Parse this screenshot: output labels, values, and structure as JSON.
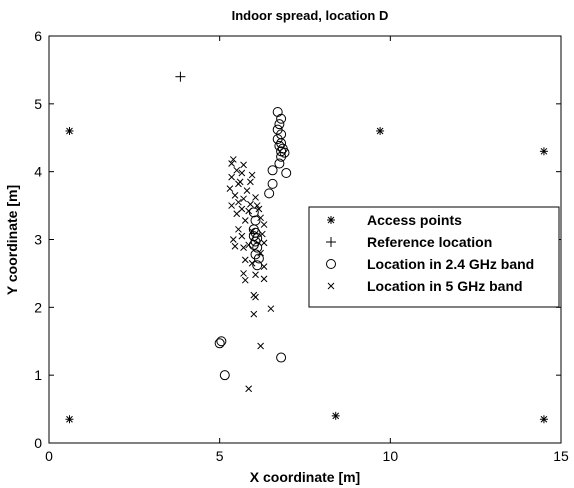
{
  "chart_data": {
    "type": "scatter",
    "title": "Indoor spread, location D",
    "xlabel": "X coordinate [m]",
    "ylabel": "Y coordinate [m]",
    "xlim": [
      0,
      15
    ],
    "ylim": [
      0,
      6
    ],
    "xticks": [
      0,
      5,
      10,
      15
    ],
    "yticks": [
      0,
      1,
      2,
      3,
      4,
      5,
      6
    ],
    "grid": false,
    "legend_position": "center-right",
    "series": [
      {
        "name": "Access points",
        "marker": "asterisk",
        "points": [
          [
            0.6,
            4.6
          ],
          [
            9.7,
            4.6
          ],
          [
            14.5,
            4.3
          ],
          [
            0.6,
            0.35
          ],
          [
            8.4,
            0.4
          ],
          [
            14.5,
            0.35
          ]
        ]
      },
      {
        "name": "Reference location",
        "marker": "plus",
        "points": [
          [
            3.85,
            5.4
          ]
        ]
      },
      {
        "name": "Location in 2.4 GHz band",
        "marker": "circle",
        "points": [
          [
            6.7,
            4.88
          ],
          [
            6.8,
            4.78
          ],
          [
            6.75,
            4.7
          ],
          [
            6.7,
            4.62
          ],
          [
            6.8,
            4.55
          ],
          [
            6.7,
            4.48
          ],
          [
            6.8,
            4.42
          ],
          [
            6.75,
            4.38
          ],
          [
            6.85,
            4.34
          ],
          [
            6.8,
            4.3
          ],
          [
            6.9,
            4.28
          ],
          [
            6.8,
            4.22
          ],
          [
            6.75,
            4.12
          ],
          [
            6.55,
            4.02
          ],
          [
            6.95,
            3.98
          ],
          [
            6.55,
            3.82
          ],
          [
            6.45,
            3.68
          ],
          [
            6.0,
            3.4
          ],
          [
            6.05,
            3.28
          ],
          [
            6.0,
            3.15
          ],
          [
            6.05,
            3.1
          ],
          [
            6.0,
            3.05
          ],
          [
            6.1,
            3.02
          ],
          [
            6.05,
            2.97
          ],
          [
            6.0,
            2.92
          ],
          [
            6.1,
            2.88
          ],
          [
            6.05,
            2.78
          ],
          [
            6.15,
            2.72
          ],
          [
            6.1,
            2.62
          ],
          [
            5.05,
            1.5
          ],
          [
            5.0,
            1.47
          ],
          [
            6.8,
            1.26
          ],
          [
            5.15,
            1.0
          ]
        ]
      },
      {
        "name": "Location in 5 GHz band",
        "marker": "x",
        "points": [
          [
            5.4,
            4.18
          ],
          [
            5.35,
            4.12
          ],
          [
            5.7,
            4.1
          ],
          [
            5.5,
            4.02
          ],
          [
            5.65,
            3.98
          ],
          [
            5.95,
            3.95
          ],
          [
            5.35,
            3.92
          ],
          [
            5.6,
            3.85
          ],
          [
            5.55,
            3.82
          ],
          [
            5.9,
            3.85
          ],
          [
            5.8,
            3.72
          ],
          [
            5.3,
            3.75
          ],
          [
            5.45,
            3.65
          ],
          [
            5.7,
            3.6
          ],
          [
            6.05,
            3.62
          ],
          [
            5.55,
            3.55
          ],
          [
            5.9,
            3.52
          ],
          [
            6.1,
            3.5
          ],
          [
            5.35,
            3.5
          ],
          [
            5.65,
            3.45
          ],
          [
            6.15,
            3.45
          ],
          [
            5.85,
            3.42
          ],
          [
            5.5,
            3.38
          ],
          [
            6.2,
            3.32
          ],
          [
            5.75,
            3.28
          ],
          [
            6.3,
            3.22
          ],
          [
            5.55,
            3.15
          ],
          [
            5.95,
            3.12
          ],
          [
            6.25,
            3.08
          ],
          [
            5.65,
            3.05
          ],
          [
            5.4,
            3.0
          ],
          [
            6.3,
            2.95
          ],
          [
            5.85,
            2.92
          ],
          [
            5.45,
            2.9
          ],
          [
            5.7,
            2.88
          ],
          [
            6.2,
            2.8
          ],
          [
            5.75,
            2.7
          ],
          [
            5.95,
            2.65
          ],
          [
            6.3,
            2.6
          ],
          [
            5.7,
            2.5
          ],
          [
            6.05,
            2.48
          ],
          [
            5.75,
            2.4
          ],
          [
            6.3,
            2.42
          ],
          [
            6.0,
            2.18
          ],
          [
            6.05,
            2.15
          ],
          [
            6.5,
            1.98
          ],
          [
            6.0,
            1.9
          ],
          [
            6.2,
            1.43
          ],
          [
            5.85,
            0.8
          ]
        ]
      }
    ]
  }
}
